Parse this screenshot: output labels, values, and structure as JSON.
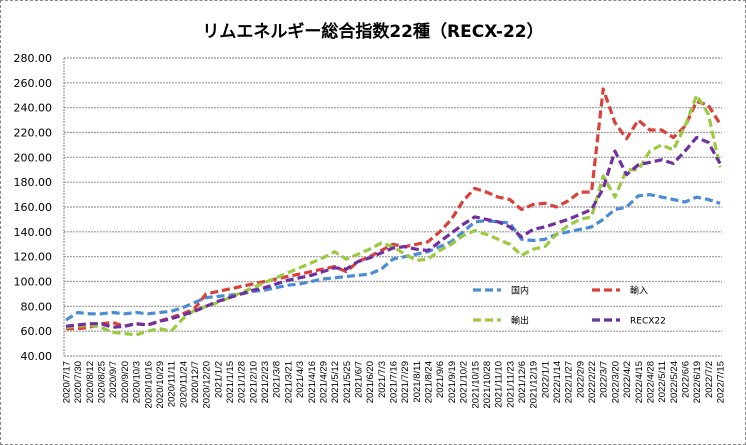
{
  "chart_data": {
    "type": "line",
    "title": "リムエネルギー総合指数22種（RECX-22）",
    "xlabel": "",
    "ylabel": "",
    "ylim": [
      40,
      280
    ],
    "yticks": [
      "40.00",
      "60.00",
      "80.00",
      "100.00",
      "120.00",
      "140.00",
      "160.00",
      "180.00",
      "200.00",
      "220.00",
      "240.00",
      "260.00",
      "280.00"
    ],
    "grid": true,
    "legend_position": "inside-lower-right",
    "x": [
      "2020/7/17",
      "2020/7/30",
      "2020/8/12",
      "2020/8/25",
      "2020/9/7",
      "2020/9/20",
      "2020/10/3",
      "2020/10/16",
      "2020/10/29",
      "2020/11/11",
      "2020/11/24",
      "2020/12/7",
      "2020/12/20",
      "2021/1/2",
      "2021/1/15",
      "2021/1/28",
      "2021/2/10",
      "2021/2/23",
      "2021/3/8",
      "2021/3/21",
      "2021/4/3",
      "2021/4/16",
      "2021/4/29",
      "2021/5/12",
      "2021/5/25",
      "2021/6/7",
      "2021/6/20",
      "2021/7/3",
      "2021/7/16",
      "2021/7/29",
      "2021/8/11",
      "2021/8/24",
      "2021/9/6",
      "2021/9/19",
      "2021/10/2",
      "2021/10/15",
      "2021/10/28",
      "2021/11/10",
      "2021/11/23",
      "2021/12/6",
      "2021/12/19",
      "2022/1/1",
      "2022/1/14",
      "2022/1/27",
      "2022/2/9",
      "2022/2/22",
      "2022/3/7",
      "2022/3/20",
      "2022/4/2",
      "2022/4/15",
      "2022/4/28",
      "2022/5/11",
      "2022/5/24",
      "2022/6/6",
      "2022/6/19",
      "2022/7/2",
      "2022/7/15"
    ],
    "series": [
      {
        "name": "国内",
        "color": "#4a8cd6",
        "values": [
          69,
          75,
          74,
          74,
          75,
          74,
          75,
          74,
          75,
          76,
          79,
          83,
          87,
          88,
          89,
          90,
          92,
          93,
          95,
          97,
          98,
          100,
          102,
          103,
          104,
          105,
          106,
          110,
          118,
          120,
          122,
          124,
          128,
          132,
          140,
          148,
          149,
          148,
          147,
          134,
          133,
          134,
          138,
          140,
          142,
          144,
          150,
          158,
          160,
          169,
          170,
          168,
          166,
          164,
          168,
          166,
          163
        ]
      },
      {
        "name": "輸入",
        "color": "#d9413a",
        "values": [
          62,
          62,
          63,
          66,
          67,
          64,
          66,
          65,
          68,
          71,
          74,
          78,
          90,
          92,
          94,
          96,
          98,
          100,
          102,
          104,
          106,
          108,
          110,
          112,
          108,
          116,
          120,
          125,
          130,
          128,
          130,
          132,
          140,
          150,
          165,
          175,
          172,
          168,
          166,
          158,
          162,
          163,
          160,
          165,
          172,
          172,
          255,
          228,
          215,
          230,
          222,
          222,
          216,
          225,
          245,
          242,
          227
        ]
      },
      {
        "name": "輸出",
        "color": "#9bc940",
        "values": [
          63,
          64,
          65,
          63,
          59,
          58,
          57,
          60,
          62,
          60,
          70,
          77,
          80,
          83,
          87,
          91,
          95,
          99,
          103,
          107,
          111,
          115,
          119,
          124,
          118,
          122,
          126,
          131,
          128,
          122,
          117,
          118,
          125,
          130,
          137,
          141,
          138,
          134,
          130,
          121,
          126,
          128,
          138,
          145,
          150,
          152,
          185,
          168,
          190,
          190,
          205,
          210,
          206,
          225,
          250,
          235,
          192
        ]
      },
      {
        "name": "RECX22",
        "color": "#7030a0",
        "values": [
          64,
          65,
          66,
          66,
          63,
          64,
          66,
          65,
          68,
          70,
          73,
          76,
          80,
          84,
          87,
          90,
          93,
          95,
          98,
          101,
          103,
          105,
          108,
          111,
          110,
          116,
          119,
          123,
          127,
          128,
          126,
          125,
          132,
          139,
          146,
          152,
          150,
          148,
          144,
          136,
          142,
          144,
          147,
          150,
          154,
          158,
          175,
          205,
          186,
          194,
          196,
          198,
          195,
          205,
          216,
          212,
          195
        ]
      }
    ]
  }
}
